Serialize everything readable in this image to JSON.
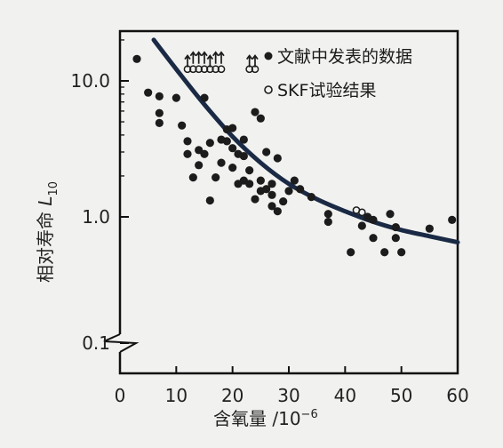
{
  "chart_data": {
    "type": "scatter",
    "xlabel": "含氧量 /10",
    "xlabel_exp": "−6",
    "ylabel": "相对寿命 ",
    "ylabel_var": "L",
    "ylabel_sub": "10",
    "x_ticks": [
      "0",
      "10",
      "20",
      "30",
      "40",
      "50",
      "60"
    ],
    "y_ticks": [
      "0.1",
      "1.0",
      "10.0"
    ],
    "xlim": [
      0,
      60
    ],
    "ylim_log": [
      0.1,
      20
    ],
    "y_scale": "log",
    "axis_break": "between 0.1 and 1.0",
    "legend": {
      "position": "top-right",
      "items": [
        {
          "label": "文献中发表的数据",
          "marker": "filled-circle"
        },
        {
          "label": "SKF试验结果",
          "marker": "open-circle"
        }
      ]
    },
    "series": [
      {
        "marker": "filled-circle",
        "points": [
          [
            3,
            14.5
          ],
          [
            5,
            8.2
          ],
          [
            7,
            7.7
          ],
          [
            7,
            5.8
          ],
          [
            7,
            4.9
          ],
          [
            10,
            7.5
          ],
          [
            11,
            4.7
          ],
          [
            12,
            3.6
          ],
          [
            12,
            2.9
          ],
          [
            13,
            1.95
          ],
          [
            14,
            3.1
          ],
          [
            14,
            2.4
          ],
          [
            15,
            7.5
          ],
          [
            15,
            2.9
          ],
          [
            16,
            3.5
          ],
          [
            16,
            1.32
          ],
          [
            17,
            1.95
          ],
          [
            18,
            3.7
          ],
          [
            18,
            2.5
          ],
          [
            19,
            3.6
          ],
          [
            19,
            4.4
          ],
          [
            20,
            4.5
          ],
          [
            20,
            3.2
          ],
          [
            20,
            2.3
          ],
          [
            21,
            2.9
          ],
          [
            21,
            1.75
          ],
          [
            22,
            3.7
          ],
          [
            22,
            2.8
          ],
          [
            22,
            1.85
          ],
          [
            23,
            2.2
          ],
          [
            23,
            1.75
          ],
          [
            24,
            5.9
          ],
          [
            24,
            1.35
          ],
          [
            25,
            5.3
          ],
          [
            25,
            1.85
          ],
          [
            25,
            1.55
          ],
          [
            26,
            3.0
          ],
          [
            26,
            1.6
          ],
          [
            27,
            1.75
          ],
          [
            27,
            1.2
          ],
          [
            27,
            1.45
          ],
          [
            28,
            2.7
          ],
          [
            28,
            1.1
          ],
          [
            29,
            1.3
          ],
          [
            30,
            1.55
          ],
          [
            31,
            1.85
          ],
          [
            32,
            1.6
          ],
          [
            34,
            1.4
          ],
          [
            37,
            1.05
          ],
          [
            37,
            0.92
          ],
          [
            41,
            0.55
          ],
          [
            43,
            0.86
          ],
          [
            44,
            1.0
          ],
          [
            45,
            0.7
          ],
          [
            45,
            0.95
          ],
          [
            47,
            0.55
          ],
          [
            48,
            1.05
          ],
          [
            49,
            0.84
          ],
          [
            49,
            0.7
          ],
          [
            50,
            0.55
          ],
          [
            55,
            0.82
          ],
          [
            59,
            0.95
          ]
        ]
      },
      {
        "marker": "open-circle",
        "points": [
          [
            12,
            12.2
          ],
          [
            13,
            12.2
          ],
          [
            14,
            12.2
          ],
          [
            15,
            12.2
          ],
          [
            16,
            12.2
          ],
          [
            17,
            12.2
          ],
          [
            18,
            12.2
          ],
          [
            23,
            12.2
          ],
          [
            24,
            12.2
          ],
          [
            42,
            1.12
          ],
          [
            43,
            1.08
          ]
        ]
      },
      {
        "marker": "up-arrow",
        "points": [
          [
            12,
            13.6
          ],
          [
            13,
            14.4
          ],
          [
            14,
            14.4
          ],
          [
            15,
            14.4
          ],
          [
            16,
            13.6
          ],
          [
            17,
            14.4
          ],
          [
            18,
            14.4
          ],
          [
            23,
            13.6
          ],
          [
            24,
            13.6
          ]
        ]
      }
    ],
    "fit_curve": [
      [
        6,
        20
      ],
      [
        10,
        12.2
      ],
      [
        15,
        6.7
      ],
      [
        20,
        3.9
      ],
      [
        25,
        2.5
      ],
      [
        30,
        1.75
      ],
      [
        35,
        1.35
      ],
      [
        40,
        1.1
      ],
      [
        45,
        0.92
      ],
      [
        50,
        0.8
      ],
      [
        55,
        0.72
      ],
      [
        60,
        0.65
      ]
    ]
  }
}
